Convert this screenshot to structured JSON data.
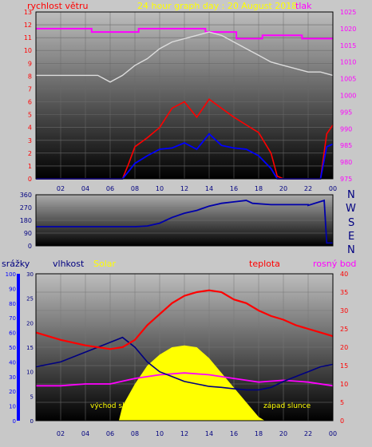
{
  "header": {
    "wind_label": "rychlost větru",
    "title": "24 hour graph day : 20 August 2018",
    "pressure_label": "tlak"
  },
  "direction_letters": [
    "N",
    "W",
    "S",
    "E",
    "N"
  ],
  "bottom_labels": {
    "rain": "srážky",
    "humidity": "vlhkost",
    "solar": "Solar",
    "temp": "teplota",
    "dewpoint": "rosný bod",
    "sunrise": "východ slu",
    "sunset": "západ slunce"
  },
  "colors": {
    "wind_label": "#ff0000",
    "title": "#ffff00",
    "pressure": "#ff00ff",
    "wind_avg": "#0000ff",
    "wind_gust": "#ff0000",
    "direction_line": "#0000aa",
    "humidity": "#000080",
    "temperature": "#ff0000",
    "dewpoint": "#ff00ff",
    "solar": "#ffff00",
    "rain_axis": "#0000ff"
  },
  "chart_data": [
    {
      "type": "line",
      "ylabel": "rychlost větru",
      "y2label": "tlak",
      "xlim": [
        0,
        24
      ],
      "x_ticks": [
        "02",
        "04",
        "06",
        "08",
        "10",
        "12",
        "14",
        "16",
        "18",
        "20",
        "22",
        "00"
      ],
      "ylim": [
        0,
        13
      ],
      "y_ticks": [
        0,
        1,
        2,
        3,
        4,
        5,
        6,
        7,
        8,
        9,
        10,
        11,
        12,
        13
      ],
      "y2lim": [
        975,
        1025
      ],
      "y2_ticks": [
        975,
        980,
        985,
        990,
        995,
        1000,
        1005,
        1010,
        1015,
        1020,
        1025
      ],
      "series": [
        {
          "name": "tlak",
          "axis": "right",
          "x": [
            0,
            4.5,
            4.5,
            8.3,
            8.3,
            13.7,
            13.7,
            16.2,
            16.2,
            18.3,
            18.3,
            21.5,
            21.5,
            24
          ],
          "values": [
            1020,
            1020,
            1019,
            1019,
            1020,
            1020,
            1019,
            1019,
            1017,
            1017,
            1018,
            1018,
            1017,
            1017
          ]
        },
        {
          "name": "",
          "axis": "right",
          "x": [
            0,
            3,
            5,
            6,
            7,
            8,
            9,
            10,
            11,
            12,
            13,
            14,
            15,
            16,
            17,
            18,
            19,
            20,
            21,
            22,
            23,
            24
          ],
          "values": [
            1006,
            1006,
            1006,
            1004,
            1006,
            1009,
            1011,
            1014,
            1016,
            1017,
            1018,
            1019,
            1018,
            1016,
            1014,
            1012,
            1010,
            1009,
            1008,
            1007,
            1007,
            1006
          ]
        },
        {
          "name": "",
          "axis": "left",
          "x": [
            0,
            7,
            7.5,
            8,
            9,
            10,
            11,
            12,
            13,
            14,
            15,
            16,
            17,
            18,
            19,
            19.5,
            20,
            22,
            23,
            23.5,
            24
          ],
          "values": [
            0,
            0,
            0.6,
            1.2,
            1.8,
            2.3,
            2.4,
            2.8,
            2.3,
            3.5,
            2.6,
            2.4,
            2.3,
            1.8,
            0.8,
            0,
            0,
            0,
            0,
            2.5,
            2.7
          ]
        },
        {
          "name": "",
          "axis": "left",
          "x": [
            0,
            7,
            7.5,
            8,
            9,
            10,
            11,
            12,
            13,
            14,
            15,
            16,
            17,
            18,
            19,
            19.5,
            20,
            22,
            23,
            23.5,
            24
          ],
          "values": [
            0,
            0,
            1.2,
            2.5,
            3.2,
            4,
            5.5,
            6,
            4.8,
            6.2,
            5.5,
            4.8,
            4.2,
            3.6,
            2,
            0.2,
            0,
            0,
            0,
            3.5,
            4.2
          ]
        }
      ]
    },
    {
      "type": "scatter",
      "xlim": [
        0,
        24
      ],
      "ylim": [
        0,
        360
      ],
      "y_ticks": [
        0,
        90,
        180,
        270,
        360
      ],
      "series": [
        {
          "name": "",
          "x": [
            0,
            8,
            9,
            10,
            11,
            12,
            13,
            14,
            15,
            16,
            17,
            17.5,
            19,
            19.5,
            22,
            22,
            23.3,
            23.5,
            24
          ],
          "values": [
            135,
            135,
            140,
            160,
            200,
            230,
            250,
            280,
            300,
            310,
            320,
            300,
            290,
            290,
            290,
            285,
            320,
            20,
            20
          ]
        }
      ]
    },
    {
      "type": "line",
      "xlim": [
        0,
        24
      ],
      "rain_ylim": [
        0,
        100
      ],
      "rain_ticks": [
        0,
        10,
        20,
        30,
        40,
        50,
        60,
        70,
        80,
        90,
        100
      ],
      "humidity_ylim": [
        0,
        30
      ],
      "humidity_ticks": [
        0,
        5,
        10,
        15,
        20,
        25,
        30
      ],
      "temp_ylim": [
        0,
        40
      ],
      "temp_ticks": [
        0,
        5,
        10,
        15,
        20,
        25,
        30,
        35,
        40
      ],
      "series": [
        {
          "name": "vlhkost",
          "axis": "humidity",
          "x": [
            0,
            2,
            4,
            5,
            6,
            7,
            8,
            9,
            10,
            11,
            12,
            13,
            14,
            15,
            16,
            17,
            18,
            19,
            20,
            21,
            22,
            23,
            24
          ],
          "values": [
            11,
            12,
            14,
            15,
            16,
            17,
            15,
            12,
            10,
            9,
            8,
            7.5,
            7,
            6.8,
            6.5,
            6.3,
            6.3,
            6.8,
            8,
            9,
            10,
            11,
            11.5
          ]
        },
        {
          "name": "teplota",
          "axis": "temp",
          "x": [
            0,
            2,
            4,
            6,
            7,
            8,
            9,
            10,
            11,
            12,
            13,
            14,
            15,
            16,
            17,
            18,
            19,
            20,
            21,
            22,
            23,
            24
          ],
          "values": [
            24,
            22,
            20.5,
            19.5,
            20,
            22,
            26,
            29,
            32,
            34,
            35,
            35.5,
            35,
            33,
            32,
            30,
            28.5,
            27.5,
            26,
            25,
            24,
            23
          ]
        },
        {
          "name": "rosný bod",
          "axis": "temp",
          "x": [
            0,
            2,
            4,
            6,
            8,
            10,
            12,
            14,
            16,
            17,
            18,
            20,
            22,
            24
          ],
          "values": [
            9.5,
            9.5,
            10,
            10,
            11.5,
            12.5,
            13,
            12.5,
            11.5,
            11,
            10.5,
            11,
            10.5,
            9.5
          ]
        },
        {
          "name": "Solar",
          "axis": "temp",
          "x": [
            0,
            6.7,
            7,
            8,
            9,
            10,
            11,
            12,
            13,
            14,
            15,
            16,
            17,
            18,
            18.5,
            24
          ],
          "values": [
            0,
            0,
            4,
            10,
            15,
            18,
            20,
            20.5,
            20,
            17,
            13,
            9,
            5,
            1,
            0,
            0
          ]
        }
      ]
    }
  ]
}
